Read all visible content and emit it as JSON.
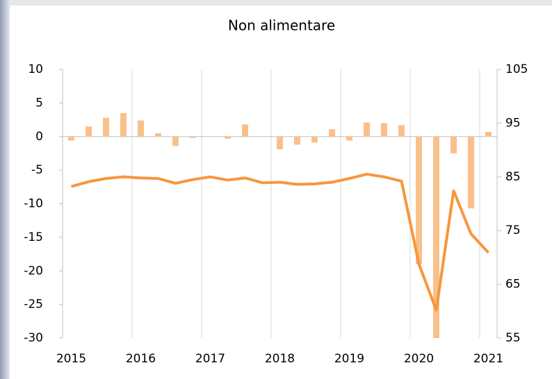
{
  "chart_data": {
    "type": "bar",
    "title": "Non alimentare",
    "categories": [
      "2015",
      null,
      null,
      null,
      "2016",
      null,
      null,
      null,
      "2017",
      null,
      null,
      null,
      "2018",
      null,
      null,
      null,
      "2019",
      null,
      null,
      null,
      "2020",
      null,
      null,
      null,
      "2021"
    ],
    "series": [
      {
        "type": "bar",
        "axis": "y",
        "color": "#f9c08c",
        "values": [
          -0.6,
          1.5,
          2.8,
          3.5,
          2.4,
          0.5,
          -1.4,
          -0.2,
          0,
          -0.3,
          1.8,
          0,
          -1.9,
          -1.2,
          -0.9,
          1.1,
          -0.6,
          2.1,
          2.0,
          1.7,
          -19,
          -30,
          -2.5,
          -10.7,
          0.7
        ]
      },
      {
        "type": "line",
        "axis": "y2",
        "color": "#f7963c",
        "values": [
          83.2,
          84.1,
          84.7,
          85.0,
          84.8,
          84.7,
          83.8,
          84.5,
          85.0,
          84.4,
          84.8,
          83.9,
          84.0,
          83.6,
          83.7,
          84.0,
          84.7,
          85.5,
          85.0,
          84.2,
          68.8,
          60.2,
          82.4,
          74.4,
          70.9
        ]
      }
    ],
    "ylim": [
      -30,
      10
    ],
    "yticks": [
      -30,
      -25,
      -20,
      -15,
      -10,
      -5,
      0,
      5,
      10
    ],
    "y2lim": [
      55,
      105
    ],
    "y2ticks": [
      55,
      65,
      75,
      85,
      95,
      105
    ]
  }
}
